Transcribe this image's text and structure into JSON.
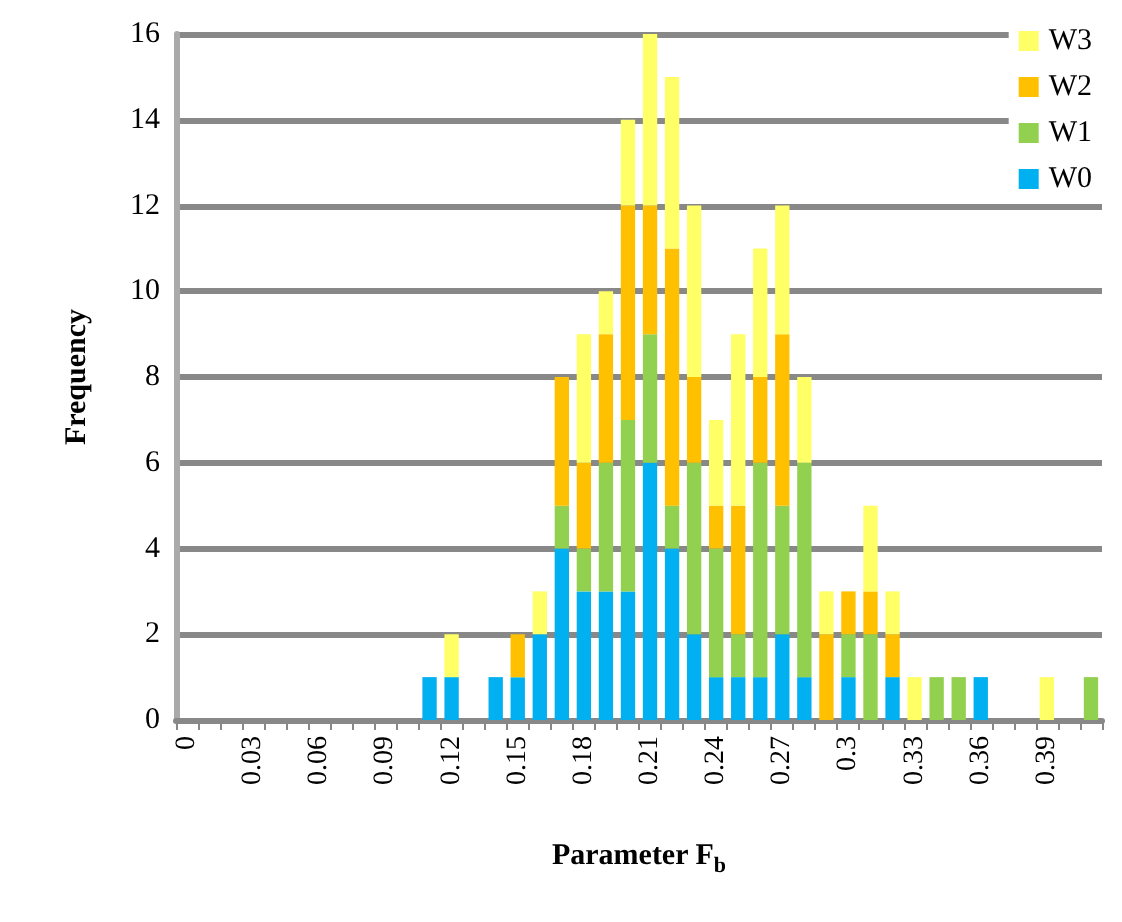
{
  "chart_data": {
    "type": "bar",
    "xlabel": "Parameter F$_{b}$",
    "ylabel": "Frequency",
    "categories": [
      "0",
      null,
      null,
      "0.03",
      null,
      null,
      "0.06",
      null,
      null,
      "0.09",
      null,
      null,
      "0.12",
      null,
      null,
      "0.15",
      null,
      null,
      "0.18",
      null,
      null,
      "0.21",
      null,
      null,
      "0.24",
      null,
      null,
      "0.27",
      null,
      null,
      "0.3",
      null,
      null,
      "0.33",
      null,
      null,
      "0.36",
      null,
      null,
      "0.39",
      null,
      null
    ],
    "stacked": true,
    "series": [
      {
        "name": "W0",
        "color": "#00b0f0",
        "values": [
          0,
          0,
          0,
          0,
          0,
          0,
          0,
          0,
          0,
          0,
          0,
          1,
          1,
          0,
          1,
          1,
          2,
          4,
          3,
          3,
          3,
          6,
          4,
          2,
          1,
          1,
          1,
          2,
          1,
          0,
          1,
          0,
          1,
          0,
          0,
          0,
          1,
          0,
          0,
          0,
          0,
          0
        ]
      },
      {
        "name": "W1",
        "color": "#92d050",
        "values": [
          0,
          0,
          0,
          0,
          0,
          0,
          0,
          0,
          0,
          0,
          0,
          0,
          0,
          0,
          0,
          0,
          0,
          1,
          1,
          3,
          4,
          3,
          1,
          4,
          3,
          1,
          5,
          3,
          5,
          0,
          1,
          2,
          0,
          0,
          1,
          1,
          0,
          0,
          0,
          0,
          0,
          1
        ]
      },
      {
        "name": "W2",
        "color": "#ffc000",
        "values": [
          0,
          0,
          0,
          0,
          0,
          0,
          0,
          0,
          0,
          0,
          0,
          0,
          0,
          0,
          0,
          1,
          0,
          3,
          2,
          3,
          5,
          3,
          6,
          2,
          1,
          3,
          2,
          4,
          0,
          2,
          1,
          1,
          1,
          0,
          0,
          0,
          0,
          0,
          0,
          0,
          0,
          0
        ]
      },
      {
        "name": "W3",
        "color": "#ffff66",
        "values": [
          0,
          0,
          0,
          0,
          0,
          0,
          0,
          0,
          0,
          0,
          0,
          0,
          1,
          0,
          0,
          0,
          1,
          0,
          3,
          1,
          2,
          4,
          4,
          4,
          2,
          4,
          3,
          3,
          2,
          1,
          0,
          2,
          1,
          1,
          0,
          0,
          0,
          0,
          0,
          1,
          0,
          0
        ]
      }
    ],
    "ylim": [
      0,
      16
    ],
    "yticks": [
      0,
      2,
      4,
      6,
      8,
      10,
      12,
      14,
      16
    ],
    "grid": "y",
    "legend": "top right"
  }
}
